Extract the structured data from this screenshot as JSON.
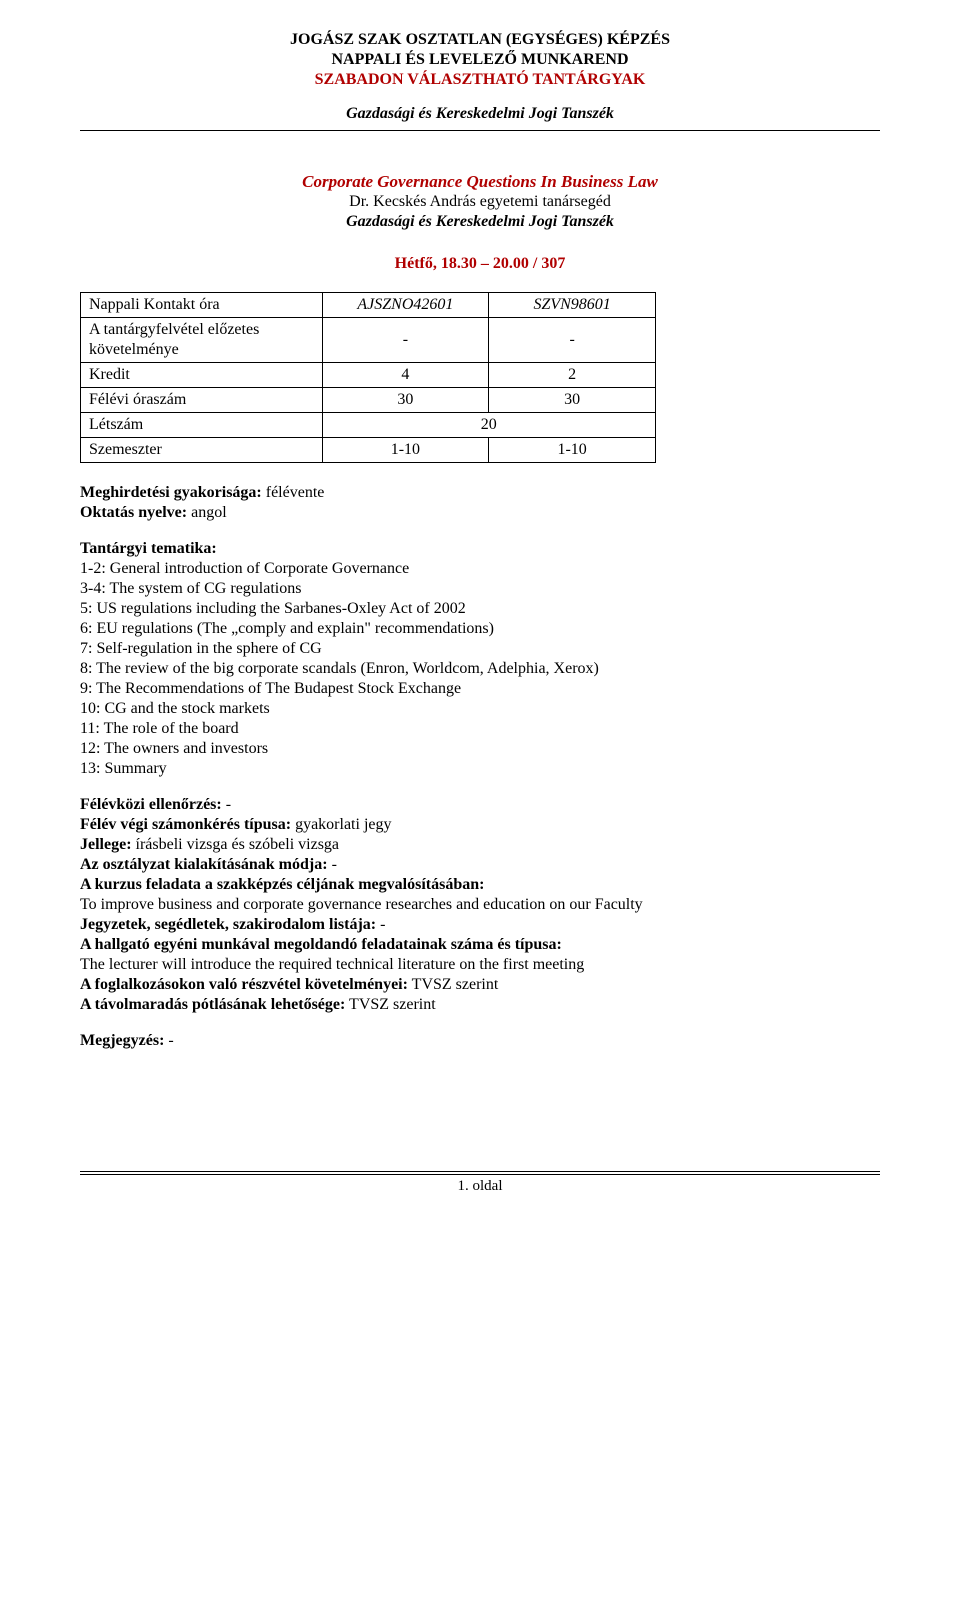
{
  "header": {
    "line1": "JOGÁSZ SZAK OSZTATLAN (EGYSÉGES) KÉPZÉS",
    "line2": "NAPPALI ÉS LEVELEZŐ MUNKAREND",
    "line3": "SZABADON VÁLASZTHATÓ TANTÁRGYAK",
    "sub": "Gazdasági és Kereskedelmi Jogi Tanszék"
  },
  "course": {
    "title": "Corporate Governance Questions In Business Law",
    "lecturer": "Dr. Kecskés András egyetemi tanársegéd",
    "department": "Gazdasági és Kereskedelmi Jogi Tanszék",
    "schedule": "Hétfő, 18.30 – 20.00 / 307"
  },
  "table": {
    "rows": [
      {
        "label": "Nappali\nKontakt óra",
        "c1": "AJSZNO42601",
        "c2": "SZVN98601",
        "italic_c1": true,
        "italic_c2": true
      },
      {
        "label": "A tantárgyfelvétel előzetes követelménye",
        "c1": "-",
        "c2": "-"
      },
      {
        "label": "Kredit",
        "c1": "4",
        "c2": "2"
      },
      {
        "label": "Félévi óraszám",
        "c1": "30",
        "c2": "30"
      },
      {
        "label": "Létszám",
        "span": "20"
      },
      {
        "label": "Szemeszter",
        "c1": "1-10",
        "c2": "1-10"
      }
    ]
  },
  "meta": {
    "freq_label": "Meghirdetési gyakorisága:",
    "freq_value": " félévente",
    "lang_label": "Oktatás nyelve:",
    "lang_value": " angol"
  },
  "syllabus": {
    "heading": "Tantárgyi tematika:",
    "items": [
      "1-2: General introduction of Corporate Governance",
      "3-4: The system of CG regulations",
      "5: US regulations including the Sarbanes-Oxley Act of 2002",
      "6: EU regulations (The „comply and explain\" recommendations)",
      "7: Self-regulation in the sphere of CG",
      "8: The review of the big corporate scandals (Enron, Worldcom, Adelphia, Xerox)",
      "9: The Recommendations of The Budapest Stock Exchange",
      "10: CG and the stock markets",
      "11: The role of the board",
      "12: The owners and investors",
      "13: Summary"
    ]
  },
  "details": [
    {
      "label": "Félévközi ellenőrzés:",
      "value": " -"
    },
    {
      "label": "Félév végi számonkérés típusa:",
      "value": " gyakorlati jegy"
    },
    {
      "label": "Jellege:",
      "value": " írásbeli vizsga és szóbeli vizsga"
    },
    {
      "label": "Az osztályzat kialakításának módja:",
      "value": " -"
    },
    {
      "label": "A kurzus feladata a szakképzés céljának megvalósításában:",
      "value": ""
    },
    {
      "plain": "To improve business and corporate governance researches and education on our Faculty"
    },
    {
      "label": "Jegyzetek, segédletek, szakirodalom listája:",
      "value": " -"
    },
    {
      "label": "A hallgató egyéni munkával megoldandó feladatainak száma és típusa:",
      "value": ""
    },
    {
      "plain": "The lecturer will introduce the required technical literature on the first meeting"
    },
    {
      "label": "A foglalkozásokon való részvétel követelményei:",
      "value": " TVSZ szerint"
    },
    {
      "label": "A távolmaradás pótlásának lehetősége:",
      "value": " TVSZ szerint"
    }
  ],
  "note": {
    "label": "Megjegyzés:",
    "value": " -"
  },
  "footer": {
    "page": "1. oldal"
  }
}
